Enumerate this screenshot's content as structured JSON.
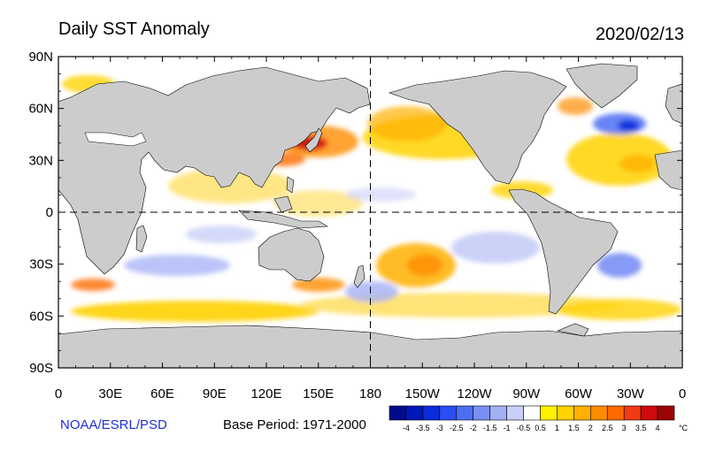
{
  "title": "Daily SST Anomaly",
  "date": "2020/02/13",
  "credit": "NOAA/ESRL/PSD",
  "base_period": "Base Period: 1971-2000",
  "lat_labels": [
    "90N",
    "60N",
    "30N",
    "0",
    "30S",
    "60S",
    "90S"
  ],
  "lon_labels": [
    "0",
    "30E",
    "60E",
    "90E",
    "120E",
    "150E",
    "180",
    "150W",
    "120W",
    "90W",
    "60W",
    "30W",
    "0"
  ],
  "colorbar": {
    "unit": "°C",
    "tick_labels": [
      "-4",
      "-3.5",
      "-3",
      "-2.5",
      "-2",
      "-1.5",
      "-1",
      "-0.5",
      "0.5",
      "1",
      "1.5",
      "2",
      "2.5",
      "3",
      "3.5",
      "4"
    ],
    "colors": [
      "#000c8a",
      "#0018b8",
      "#0a2bd9",
      "#2c4ef0",
      "#4c6ef2",
      "#7a8ff4",
      "#a4b0f6",
      "#c9cff8",
      "#ffffff",
      "#fff200",
      "#ffd200",
      "#ffb000",
      "#ff8c00",
      "#ff6a00",
      "#f23a14",
      "#d00a0a",
      "#9a0606"
    ]
  },
  "colors": {
    "land": "#cccccc",
    "ocean": "#ffffff",
    "credit_text": "#1f2fd6"
  }
}
